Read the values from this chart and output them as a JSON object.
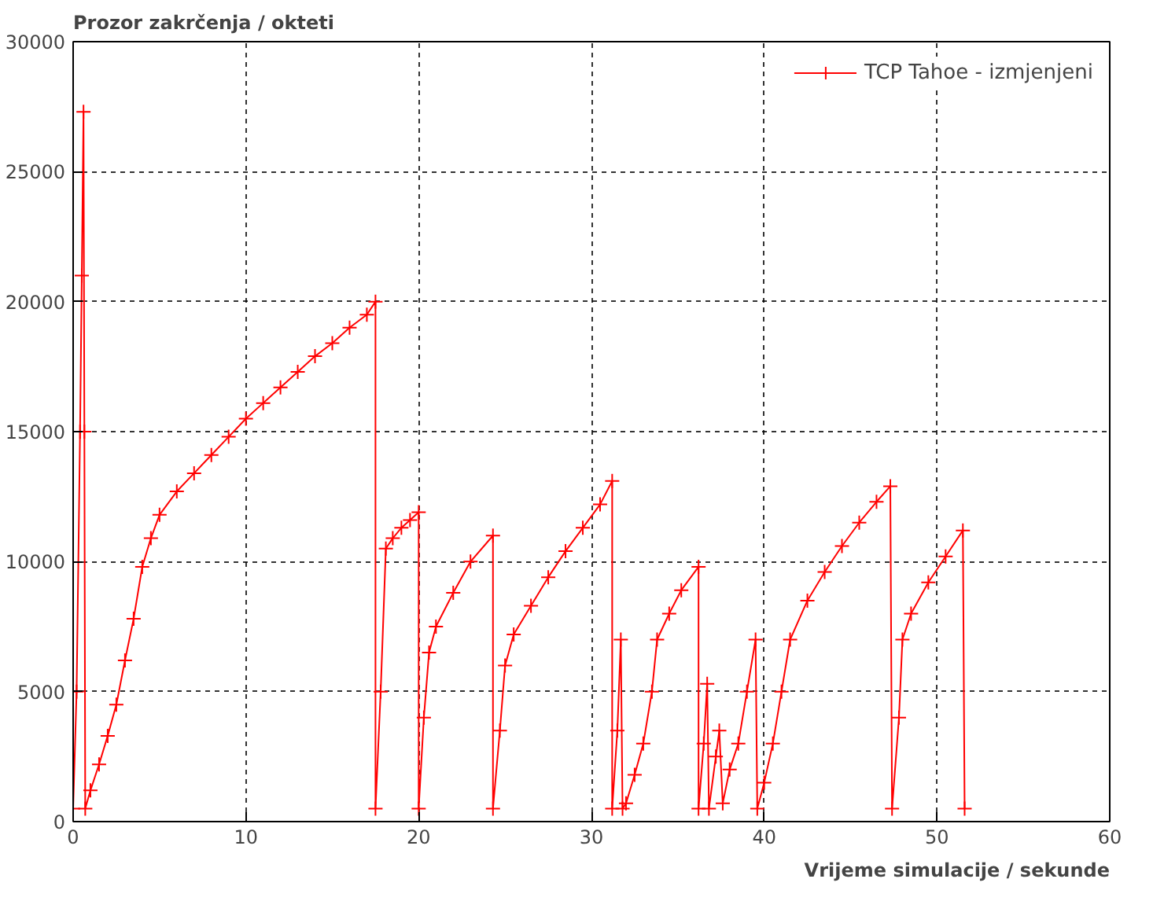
{
  "chart_data": {
    "type": "line",
    "xlabel": "Vrijeme simulacije / sekunde",
    "ylabel": "Prozor zakrčenja / okteti",
    "xlim": [
      0,
      60
    ],
    "xticks": [
      0,
      10,
      20,
      30,
      40,
      50,
      60
    ],
    "ylim": [
      0,
      30000
    ],
    "yticks": [
      0,
      5000,
      10000,
      15000,
      20000,
      25000,
      30000
    ],
    "grid": true,
    "legend": "top right",
    "marker": "cross",
    "line_style": "solid",
    "series": [
      {
        "name": "TCP Tahoe - izmjenjeni",
        "color": "#ff0000",
        "x": [
          0,
          0.2,
          0.4,
          0.5,
          0.6,
          0.65,
          0.7,
          1.0,
          1.5,
          2.0,
          2.5,
          3.0,
          3.5,
          4.0,
          4.5,
          5.0,
          6.0,
          7.0,
          8.0,
          9.0,
          10.0,
          11.0,
          12.0,
          13.0,
          14.0,
          15.0,
          16.0,
          17.0,
          17.5,
          17.5,
          17.8,
          18.1,
          18.5,
          19.0,
          19.5,
          20.0,
          20.0,
          20.3,
          20.6,
          21.0,
          22.0,
          23.0,
          24.3,
          24.3,
          24.7,
          25.0,
          25.5,
          26.5,
          27.5,
          28.5,
          29.5,
          30.5,
          31.2,
          31.2,
          31.5,
          31.7,
          31.8,
          32.0,
          32.5,
          33.0,
          33.5,
          33.8,
          34.5,
          35.2,
          36.2,
          36.2,
          36.5,
          36.7,
          36.8,
          37.2,
          37.4,
          37.6,
          38.0,
          38.5,
          39.0,
          39.5,
          39.6,
          40.0,
          40.5,
          41.0,
          41.5,
          42.5,
          43.5,
          44.5,
          45.5,
          46.5,
          47.3,
          47.4,
          47.8,
          48.0,
          48.5,
          49.5,
          50.5,
          51.5,
          51.6
        ],
        "values": [
          500,
          5000,
          15000,
          21000,
          27300,
          15000,
          500,
          1200,
          2200,
          3300,
          4500,
          6200,
          7800,
          9800,
          10900,
          11800,
          12700,
          13400,
          14100,
          14800,
          15500,
          16100,
          16700,
          17300,
          17900,
          18400,
          19000,
          19500,
          20000,
          500,
          5000,
          10500,
          10900,
          11300,
          11600,
          11900,
          500,
          4000,
          6500,
          7500,
          8800,
          10000,
          11000,
          500,
          3500,
          6000,
          7200,
          8300,
          9400,
          10400,
          11300,
          12200,
          13100,
          500,
          3500,
          7000,
          500,
          700,
          1800,
          3000,
          5000,
          7000,
          8000,
          8900,
          9800,
          500,
          3000,
          5300,
          500,
          2500,
          3500,
          700,
          2000,
          3000,
          5000,
          7000,
          500,
          1500,
          3000,
          5000,
          7000,
          8500,
          9600,
          10600,
          11500,
          12300,
          12900,
          500,
          4000,
          7000,
          8000,
          9200,
          10200,
          11200,
          500
        ]
      }
    ]
  }
}
